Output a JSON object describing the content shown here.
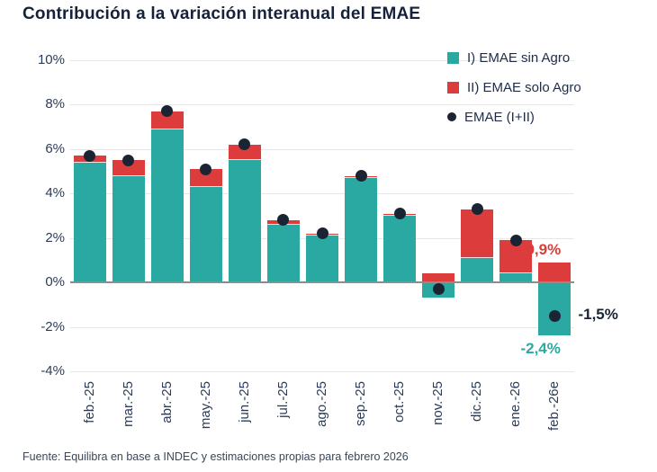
{
  "title": "Contribución a la variación interanual del EMAE",
  "source": "Fuente: Equilibra en base a INDEC y estimaciones propias para febrero 2026",
  "colors": {
    "teal": "#29a9a2",
    "red": "#dd3c3c",
    "dot": "#1b2433",
    "title_navy": "#16213a",
    "tick_label": "#2c3c57"
  },
  "legend": [
    {
      "label": "I) EMAE sin Agro",
      "marker": "square",
      "color": "#29a9a2"
    },
    {
      "label": "II) EMAE solo Agro",
      "marker": "square",
      "color": "#dd3c3c"
    },
    {
      "label": "EMAE (I+II)",
      "marker": "dot",
      "color": "#1b2433"
    }
  ],
  "chart_data": {
    "type": "bar",
    "stacked": true,
    "title": "Contribución a la variación interanual del EMAE",
    "xlabel": "",
    "ylabel": "",
    "ylim": [
      -4,
      10
    ],
    "ytick_step": 2,
    "ytick_labels": [
      "10%",
      "8%",
      "6%",
      "4%",
      "2%",
      "0%",
      "-2%",
      "-4%"
    ],
    "grid": true,
    "legend_position": "top-right",
    "categories": [
      "feb.-25",
      "mar.-25",
      "abr.-25",
      "may.-25",
      "jun.-25",
      "jul.-25",
      "ago.-25",
      "sep.-25",
      "oct.-25",
      "nov.-25",
      "dic.-25",
      "ene.-26",
      "feb.-26e"
    ],
    "series": [
      {
        "name": "I) EMAE sin Agro",
        "color": "#29a9a2",
        "values": [
          5.4,
          4.8,
          6.9,
          4.3,
          5.5,
          2.6,
          2.1,
          4.7,
          3.0,
          -0.7,
          1.1,
          0.4,
          -2.4
        ]
      },
      {
        "name": "II) EMAE solo Agro",
        "color": "#dd3c3c",
        "values": [
          0.3,
          0.7,
          0.8,
          0.8,
          0.7,
          0.2,
          0.1,
          0.1,
          0.1,
          0.4,
          2.2,
          1.5,
          0.9
        ]
      }
    ],
    "points": {
      "name": "EMAE (I+II)",
      "color": "#1b2433",
      "values": [
        5.7,
        5.5,
        7.7,
        5.1,
        6.2,
        2.8,
        2.2,
        4.8,
        3.1,
        -0.3,
        3.3,
        1.9,
        -1.5
      ]
    },
    "annotations": [
      {
        "text": "0,9%",
        "color": "#dd3c3c",
        "bar_index": 12,
        "anchor": "above-red-top",
        "value": 0.9
      },
      {
        "text": "-1,5%",
        "color": "#1b2433",
        "bar_index": 12,
        "anchor": "right-of-dot",
        "value": -1.5
      },
      {
        "text": "-2,4%",
        "color": "#29a9a2",
        "bar_index": 12,
        "anchor": "below-bar",
        "value": -2.4
      }
    ]
  }
}
